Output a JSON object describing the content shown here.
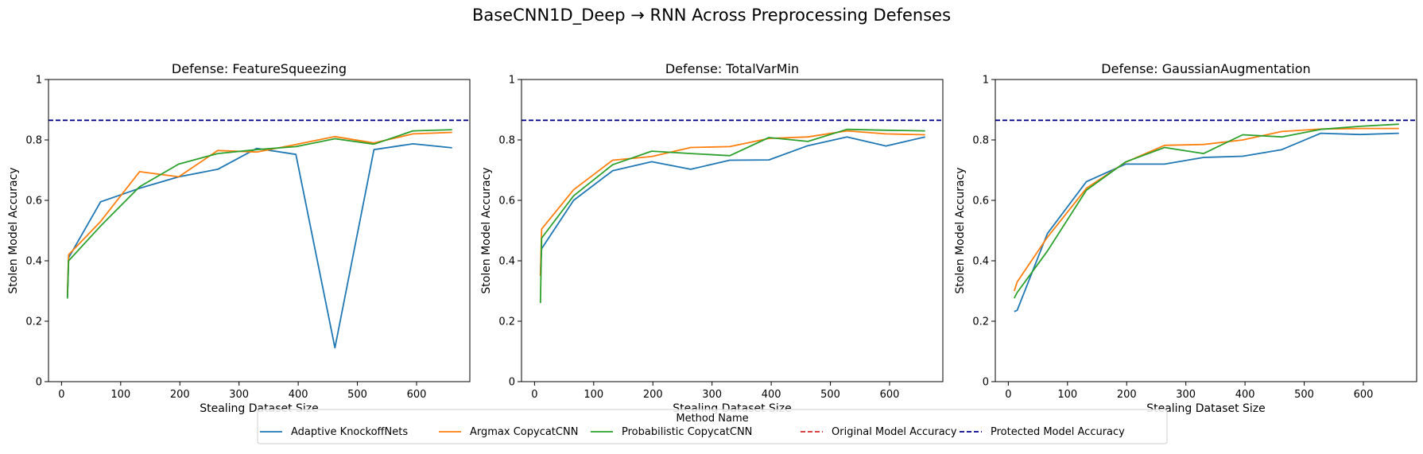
{
  "figure_title": "BaseCNN1D_Deep → RNN Across Preprocessing Defenses",
  "legend": {
    "title": "Method Name",
    "entries": [
      {
        "label": "Adaptive KnockoffNets",
        "color": "#1f77b4",
        "style": "solid"
      },
      {
        "label": "Argmax CopycatCNN",
        "color": "#ff7f0e",
        "style": "solid"
      },
      {
        "label": "Probabilistic CopycatCNN",
        "color": "#2ca02c",
        "style": "solid"
      },
      {
        "label": "Original Model Accuracy",
        "color": "#d62728",
        "style": "dashed"
      },
      {
        "label": "Protected Model Accuracy",
        "color": "#00008b",
        "style": "dashed"
      }
    ]
  },
  "chart_data": [
    {
      "type": "line",
      "title": "Defense: FeatureSqueezing",
      "xlabel": "Stealing Dataset Size",
      "ylabel": "Stolen Model Accuracy",
      "xlim": [
        -22,
        690
      ],
      "ylim": [
        0,
        1
      ],
      "xticks": [
        0,
        100,
        200,
        300,
        400,
        500,
        600
      ],
      "yticks": [
        0.0,
        0.2,
        0.4,
        0.6,
        0.8,
        1.0
      ],
      "grid": false,
      "hlines": [
        {
          "name": "Protected Model Accuracy",
          "y": 0.865,
          "color": "#00008b"
        }
      ],
      "series": [
        {
          "name": "Adaptive KnockoffNets",
          "color": "#1f77b4",
          "x": [
            10,
            12,
            66,
            132,
            198,
            264,
            330,
            396,
            462,
            528,
            594,
            660
          ],
          "y": [
            0.28,
            0.41,
            0.595,
            0.64,
            0.678,
            0.703,
            0.772,
            0.752,
            0.112,
            0.768,
            0.787,
            0.774
          ]
        },
        {
          "name": "Argmax CopycatCNN",
          "color": "#ff7f0e",
          "x": [
            10,
            12,
            66,
            132,
            198,
            264,
            330,
            396,
            462,
            528,
            594,
            660
          ],
          "y": [
            0.29,
            0.42,
            0.53,
            0.695,
            0.678,
            0.765,
            0.76,
            0.785,
            0.811,
            0.79,
            0.82,
            0.825
          ]
        },
        {
          "name": "Probabilistic CopycatCNN",
          "color": "#2ca02c",
          "x": [
            10,
            12,
            66,
            132,
            198,
            264,
            330,
            396,
            462,
            528,
            594,
            660
          ],
          "y": [
            0.275,
            0.4,
            0.515,
            0.645,
            0.72,
            0.755,
            0.768,
            0.778,
            0.804,
            0.786,
            0.83,
            0.834
          ]
        }
      ]
    },
    {
      "type": "line",
      "title": "Defense: TotalVarMin",
      "xlabel": "Stealing Dataset Size",
      "ylabel": "Stolen Model Accuracy",
      "xlim": [
        -22,
        690
      ],
      "ylim": [
        0,
        1
      ],
      "xticks": [
        0,
        100,
        200,
        300,
        400,
        500,
        600
      ],
      "yticks": [
        0.0,
        0.2,
        0.4,
        0.6,
        0.8,
        1.0
      ],
      "grid": false,
      "hlines": [
        {
          "name": "Protected Model Accuracy",
          "y": 0.865,
          "color": "#00008b"
        }
      ],
      "series": [
        {
          "name": "Adaptive KnockoffNets",
          "color": "#1f77b4",
          "x": [
            10,
            12,
            66,
            132,
            198,
            264,
            330,
            396,
            462,
            528,
            594,
            660
          ],
          "y": [
            0.36,
            0.44,
            0.6,
            0.698,
            0.728,
            0.703,
            0.733,
            0.734,
            0.781,
            0.81,
            0.78,
            0.81
          ]
        },
        {
          "name": "Argmax CopycatCNN",
          "color": "#ff7f0e",
          "x": [
            10,
            12,
            66,
            132,
            198,
            264,
            330,
            396,
            462,
            528,
            594,
            660
          ],
          "y": [
            0.35,
            0.505,
            0.635,
            0.733,
            0.745,
            0.775,
            0.778,
            0.805,
            0.81,
            0.83,
            0.82,
            0.817
          ]
        },
        {
          "name": "Probabilistic CopycatCNN",
          "color": "#2ca02c",
          "x": [
            10,
            12,
            66,
            132,
            198,
            264,
            330,
            396,
            462,
            528,
            594,
            660
          ],
          "y": [
            0.26,
            0.475,
            0.615,
            0.718,
            0.763,
            0.755,
            0.748,
            0.808,
            0.795,
            0.835,
            0.832,
            0.83
          ]
        }
      ]
    },
    {
      "type": "line",
      "title": "Defense: GaussianAugmentation",
      "xlabel": "Stealing Dataset Size",
      "ylabel": "Stolen Model Accuracy",
      "xlim": [
        -22,
        690
      ],
      "ylim": [
        0,
        1
      ],
      "xticks": [
        0,
        100,
        200,
        300,
        400,
        500,
        600
      ],
      "yticks": [
        0.0,
        0.2,
        0.4,
        0.6,
        0.8,
        1.0
      ],
      "grid": false,
      "hlines": [
        {
          "name": "Protected Model Accuracy",
          "y": 0.865,
          "color": "#00008b"
        }
      ],
      "series": [
        {
          "name": "Adaptive KnockoffNets",
          "color": "#1f77b4",
          "x": [
            10,
            15,
            66,
            132,
            198,
            264,
            330,
            396,
            462,
            528,
            594,
            660
          ],
          "y": [
            0.232,
            0.236,
            0.49,
            0.662,
            0.72,
            0.72,
            0.742,
            0.746,
            0.768,
            0.822,
            0.818,
            0.822
          ]
        },
        {
          "name": "Argmax CopycatCNN",
          "color": "#ff7f0e",
          "x": [
            10,
            15,
            66,
            132,
            198,
            264,
            330,
            396,
            462,
            528,
            594,
            660
          ],
          "y": [
            0.3,
            0.33,
            0.478,
            0.64,
            0.726,
            0.782,
            0.785,
            0.8,
            0.828,
            0.836,
            0.838,
            0.838
          ]
        },
        {
          "name": "Probabilistic CopycatCNN",
          "color": "#2ca02c",
          "x": [
            10,
            15,
            66,
            132,
            198,
            264,
            330,
            396,
            462,
            528,
            594,
            660
          ],
          "y": [
            0.276,
            0.295,
            0.432,
            0.634,
            0.727,
            0.775,
            0.755,
            0.817,
            0.81,
            0.835,
            0.845,
            0.852
          ]
        }
      ]
    }
  ]
}
